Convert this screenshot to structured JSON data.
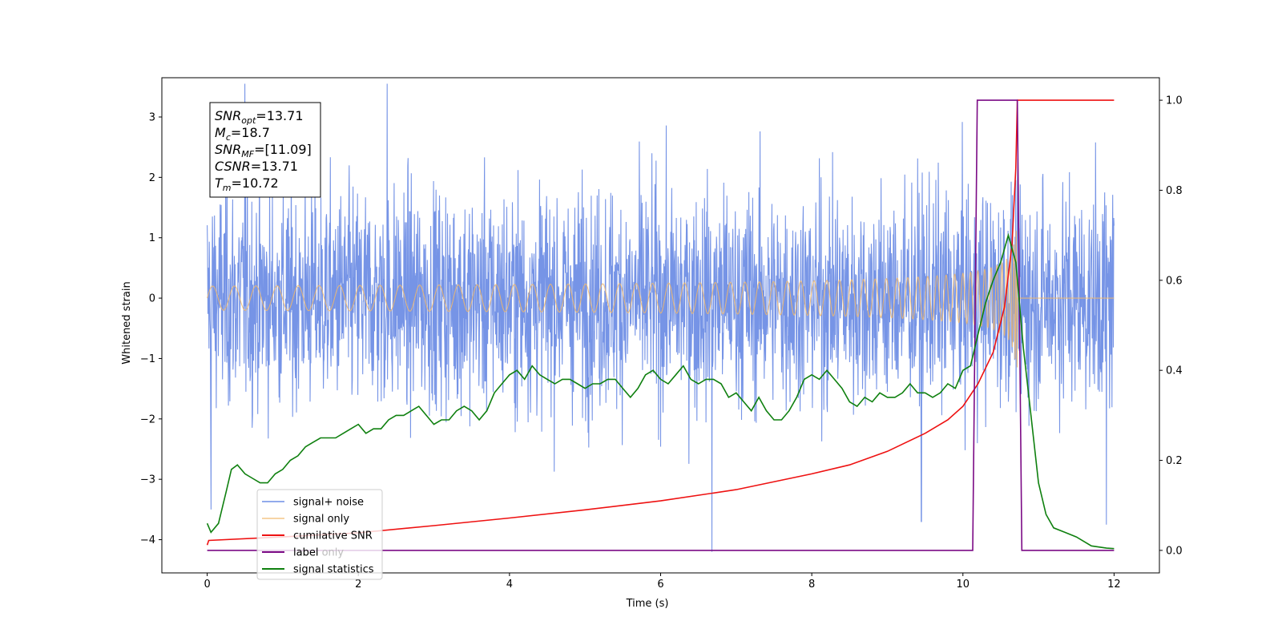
{
  "chart_data": {
    "type": "line",
    "xlabel": "Time (s)",
    "ylabel": "Whitened strain",
    "xlim": [
      -0.6,
      12.6
    ],
    "ylim": [
      -4.55,
      3.65
    ],
    "y2lim": [
      -0.05,
      1.05
    ],
    "x_ticks": [
      0,
      2,
      4,
      6,
      8,
      10,
      12
    ],
    "y_ticks": [
      -4,
      -3,
      -2,
      -1,
      0,
      1,
      2,
      3
    ],
    "y2_ticks": [
      0.0,
      0.2,
      0.4,
      0.6,
      0.8,
      1.0
    ],
    "grid": false,
    "legend_position": "bottom-left",
    "annotation": {
      "lines": [
        {
          "name": "SNR",
          "sub": "opt",
          "value": "=13.71"
        },
        {
          "name": "M",
          "sub": "c",
          "value": "=18.7"
        },
        {
          "name": "SNR",
          "sub": "MF",
          "value": "=[11.09]"
        },
        {
          "name": "CSNR",
          "sub": "",
          "value": "=13.71"
        },
        {
          "name": "T",
          "sub": "m",
          "value": "=10.72"
        }
      ]
    },
    "series": [
      {
        "name": "signal+ noise",
        "color": "#6f8ee5",
        "axis": "left",
        "kind": "noise",
        "amplitude": 0.95,
        "t_start": 0,
        "t_end": 12,
        "spikes": [
          [
            0.05,
            -3.5
          ],
          [
            0.5,
            3.55
          ],
          [
            2.38,
            3.55
          ],
          [
            6.68,
            -4.2
          ],
          [
            9.45,
            -3.7
          ],
          [
            11.9,
            -3.75
          ]
        ]
      },
      {
        "name": "signal only",
        "color": "#f2b96b",
        "axis": "left",
        "kind": "chirp",
        "t_start": 0,
        "t_merge": 10.72,
        "t_end": 12,
        "peak_amplitude": 1.4
      },
      {
        "name": "cumilative SNR",
        "color": "#ee1111",
        "axis": "right",
        "points": [
          [
            0,
            0.012
          ],
          [
            0.02,
            0.022
          ],
          [
            1,
            0.03
          ],
          [
            2,
            0.039
          ],
          [
            3,
            0.055
          ],
          [
            4,
            0.072
          ],
          [
            5,
            0.09
          ],
          [
            6,
            0.11
          ],
          [
            7,
            0.135
          ],
          [
            8,
            0.17
          ],
          [
            8.5,
            0.19
          ],
          [
            9,
            0.22
          ],
          [
            9.5,
            0.26
          ],
          [
            9.8,
            0.29
          ],
          [
            10,
            0.32
          ],
          [
            10.2,
            0.37
          ],
          [
            10.4,
            0.44
          ],
          [
            10.55,
            0.54
          ],
          [
            10.65,
            0.68
          ],
          [
            10.7,
            0.85
          ],
          [
            10.72,
            1.0
          ],
          [
            12,
            1.0
          ]
        ]
      },
      {
        "name": "label",
        "color": "#7b0a85",
        "axis": "right",
        "points": [
          [
            0,
            0
          ],
          [
            10.13,
            0
          ],
          [
            10.19,
            1
          ],
          [
            10.72,
            1
          ],
          [
            10.78,
            0
          ],
          [
            12,
            0
          ]
        ]
      },
      {
        "name": "label only",
        "color": "#bdbdbd",
        "axis": "right",
        "points": []
      },
      {
        "name": "signal statistics",
        "color": "#0f800f",
        "axis": "right",
        "points": [
          [
            0,
            0.06
          ],
          [
            0.05,
            0.04
          ],
          [
            0.15,
            0.06
          ],
          [
            0.25,
            0.13
          ],
          [
            0.32,
            0.18
          ],
          [
            0.4,
            0.19
          ],
          [
            0.5,
            0.17
          ],
          [
            0.6,
            0.16
          ],
          [
            0.7,
            0.15
          ],
          [
            0.8,
            0.15
          ],
          [
            0.9,
            0.17
          ],
          [
            1.0,
            0.18
          ],
          [
            1.1,
            0.2
          ],
          [
            1.2,
            0.21
          ],
          [
            1.3,
            0.23
          ],
          [
            1.4,
            0.24
          ],
          [
            1.5,
            0.25
          ],
          [
            1.6,
            0.25
          ],
          [
            1.7,
            0.25
          ],
          [
            1.8,
            0.26
          ],
          [
            1.9,
            0.27
          ],
          [
            2.0,
            0.28
          ],
          [
            2.1,
            0.26
          ],
          [
            2.2,
            0.27
          ],
          [
            2.3,
            0.27
          ],
          [
            2.4,
            0.29
          ],
          [
            2.5,
            0.3
          ],
          [
            2.6,
            0.3
          ],
          [
            2.7,
            0.31
          ],
          [
            2.8,
            0.32
          ],
          [
            2.9,
            0.3
          ],
          [
            3.0,
            0.28
          ],
          [
            3.1,
            0.29
          ],
          [
            3.2,
            0.29
          ],
          [
            3.3,
            0.31
          ],
          [
            3.4,
            0.32
          ],
          [
            3.5,
            0.31
          ],
          [
            3.6,
            0.29
          ],
          [
            3.7,
            0.31
          ],
          [
            3.8,
            0.35
          ],
          [
            3.9,
            0.37
          ],
          [
            4.0,
            0.39
          ],
          [
            4.1,
            0.4
          ],
          [
            4.2,
            0.38
          ],
          [
            4.3,
            0.41
          ],
          [
            4.4,
            0.39
          ],
          [
            4.5,
            0.38
          ],
          [
            4.6,
            0.37
          ],
          [
            4.7,
            0.38
          ],
          [
            4.8,
            0.38
          ],
          [
            4.9,
            0.37
          ],
          [
            5.0,
            0.36
          ],
          [
            5.1,
            0.37
          ],
          [
            5.2,
            0.37
          ],
          [
            5.3,
            0.38
          ],
          [
            5.4,
            0.38
          ],
          [
            5.5,
            0.36
          ],
          [
            5.6,
            0.34
          ],
          [
            5.7,
            0.36
          ],
          [
            5.8,
            0.39
          ],
          [
            5.9,
            0.4
          ],
          [
            6.0,
            0.38
          ],
          [
            6.1,
            0.37
          ],
          [
            6.2,
            0.39
          ],
          [
            6.3,
            0.41
          ],
          [
            6.4,
            0.38
          ],
          [
            6.5,
            0.37
          ],
          [
            6.6,
            0.38
          ],
          [
            6.7,
            0.38
          ],
          [
            6.8,
            0.37
          ],
          [
            6.9,
            0.34
          ],
          [
            7.0,
            0.35
          ],
          [
            7.1,
            0.33
          ],
          [
            7.2,
            0.31
          ],
          [
            7.3,
            0.34
          ],
          [
            7.4,
            0.31
          ],
          [
            7.5,
            0.29
          ],
          [
            7.6,
            0.29
          ],
          [
            7.7,
            0.31
          ],
          [
            7.8,
            0.34
          ],
          [
            7.9,
            0.38
          ],
          [
            8.0,
            0.39
          ],
          [
            8.1,
            0.38
          ],
          [
            8.2,
            0.4
          ],
          [
            8.3,
            0.38
          ],
          [
            8.4,
            0.36
          ],
          [
            8.5,
            0.33
          ],
          [
            8.6,
            0.32
          ],
          [
            8.7,
            0.34
          ],
          [
            8.8,
            0.33
          ],
          [
            8.9,
            0.35
          ],
          [
            9.0,
            0.34
          ],
          [
            9.1,
            0.34
          ],
          [
            9.2,
            0.35
          ],
          [
            9.3,
            0.37
          ],
          [
            9.4,
            0.35
          ],
          [
            9.5,
            0.35
          ],
          [
            9.6,
            0.34
          ],
          [
            9.7,
            0.35
          ],
          [
            9.8,
            0.37
          ],
          [
            9.9,
            0.36
          ],
          [
            10.0,
            0.4
          ],
          [
            10.1,
            0.41
          ],
          [
            10.2,
            0.48
          ],
          [
            10.3,
            0.55
          ],
          [
            10.4,
            0.6
          ],
          [
            10.5,
            0.64
          ],
          [
            10.6,
            0.7
          ],
          [
            10.7,
            0.64
          ],
          [
            10.8,
            0.45
          ],
          [
            10.9,
            0.3
          ],
          [
            11.0,
            0.15
          ],
          [
            11.1,
            0.08
          ],
          [
            11.2,
            0.05
          ],
          [
            11.35,
            0.04
          ],
          [
            11.5,
            0.03
          ],
          [
            11.7,
            0.01
          ],
          [
            11.9,
            0.005
          ],
          [
            12.0,
            0.004
          ]
        ]
      }
    ]
  }
}
